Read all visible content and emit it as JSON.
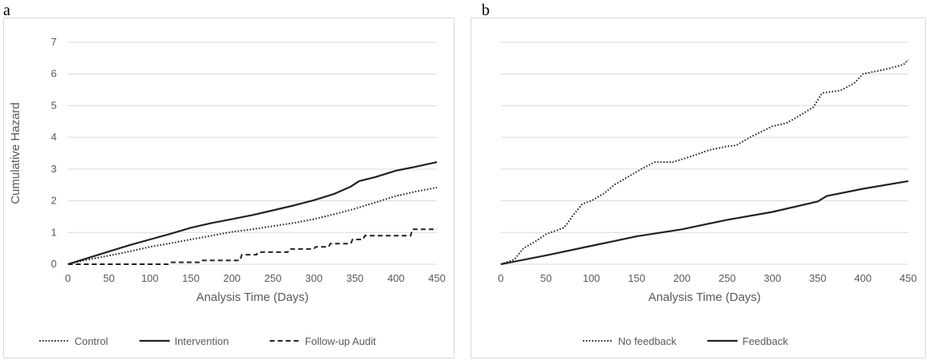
{
  "panels": [
    {
      "letter": "a"
    },
    {
      "letter": "b"
    }
  ],
  "chart_data": [
    {
      "type": "line",
      "panel": "a",
      "xlabel": "Analysis Time (Days)",
      "ylabel": "Cumulative Hazard",
      "xlim": [
        0,
        450
      ],
      "ylim": [
        0,
        7
      ],
      "xticks": [
        0,
        50,
        100,
        150,
        200,
        250,
        300,
        350,
        400,
        450
      ],
      "yticks": [
        0,
        1,
        2,
        3,
        4,
        5,
        6,
        7
      ],
      "grid": true,
      "legend": "bottom",
      "series": [
        {
          "name": "Control",
          "style": "dotted",
          "color": "#222222",
          "x": [
            0,
            20,
            50,
            75,
            100,
            125,
            150,
            175,
            200,
            225,
            250,
            275,
            300,
            325,
            350,
            375,
            400,
            425,
            450
          ],
          "y": [
            0,
            0.12,
            0.27,
            0.4,
            0.55,
            0.66,
            0.78,
            0.9,
            1.02,
            1.1,
            1.2,
            1.3,
            1.42,
            1.58,
            1.75,
            1.95,
            2.15,
            2.3,
            2.42
          ]
        },
        {
          "name": "Intervention",
          "style": "solid",
          "color": "#222222",
          "x": [
            0,
            25,
            50,
            75,
            100,
            125,
            150,
            175,
            200,
            225,
            250,
            275,
            300,
            325,
            345,
            355,
            375,
            400,
            425,
            450
          ],
          "y": [
            0,
            0.2,
            0.4,
            0.6,
            0.78,
            0.96,
            1.15,
            1.3,
            1.42,
            1.55,
            1.7,
            1.85,
            2.02,
            2.22,
            2.45,
            2.62,
            2.75,
            2.95,
            3.08,
            3.22
          ]
        },
        {
          "name": "Follow-up Audit",
          "style": "dashed",
          "color": "#222222",
          "x": [
            0,
            122,
            124,
            160,
            162,
            210,
            212,
            230,
            232,
            268,
            270,
            300,
            302,
            318,
            320,
            345,
            347,
            360,
            362,
            418,
            420,
            450
          ],
          "y": [
            0,
            0,
            0.06,
            0.06,
            0.12,
            0.12,
            0.3,
            0.3,
            0.38,
            0.38,
            0.48,
            0.48,
            0.55,
            0.55,
            0.65,
            0.65,
            0.78,
            0.78,
            0.9,
            0.9,
            1.1,
            1.1
          ]
        }
      ]
    },
    {
      "type": "line",
      "panel": "b",
      "xlabel": "Analysis Time (Days)",
      "ylabel": "",
      "xlim": [
        0,
        450
      ],
      "ylim": [
        0,
        7
      ],
      "xticks": [
        0,
        50,
        100,
        150,
        200,
        250,
        300,
        350,
        400,
        450
      ],
      "yticks": [
        0,
        1,
        2,
        3,
        4,
        5,
        6,
        7
      ],
      "grid": true,
      "legend": "bottom",
      "series": [
        {
          "name": "No feedback",
          "style": "dotted",
          "color": "#222222",
          "x": [
            0,
            15,
            25,
            40,
            50,
            70,
            80,
            90,
            100,
            115,
            125,
            140,
            155,
            170,
            190,
            210,
            230,
            250,
            260,
            275,
            300,
            315,
            325,
            345,
            355,
            375,
            390,
            400,
            425,
            445,
            450
          ],
          "y": [
            0,
            0.15,
            0.5,
            0.75,
            0.95,
            1.15,
            1.55,
            1.9,
            2.0,
            2.25,
            2.5,
            2.75,
            3.0,
            3.22,
            3.22,
            3.4,
            3.6,
            3.72,
            3.75,
            4.0,
            4.35,
            4.45,
            4.6,
            4.95,
            5.4,
            5.48,
            5.7,
            6.0,
            6.15,
            6.3,
            6.45
          ]
        },
        {
          "name": "Feedback",
          "style": "solid",
          "color": "#222222",
          "x": [
            0,
            50,
            100,
            150,
            200,
            250,
            300,
            350,
            360,
            400,
            450
          ],
          "y": [
            0,
            0.28,
            0.58,
            0.88,
            1.1,
            1.4,
            1.65,
            1.98,
            2.15,
            2.38,
            2.62
          ]
        }
      ]
    }
  ]
}
